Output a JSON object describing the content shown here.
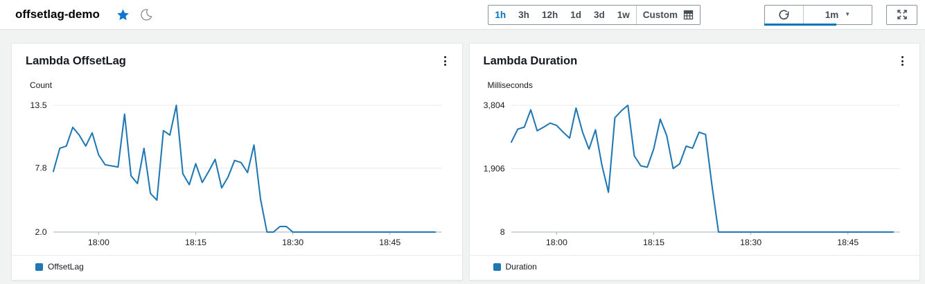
{
  "header": {
    "title": "offsetlag-demo"
  },
  "glyphs": {
    "caret_down": "▼"
  },
  "icons": {
    "favorite": "star",
    "theme_toggle": "moon",
    "custom_range_picker": "calendar-grid",
    "refresh": "circular-arrow",
    "interval_caret": "caret-down",
    "fullscreen": "expand-arrows",
    "widget_menu": "kebab-vertical"
  },
  "toolbar": {
    "time_ranges": [
      "1h",
      "3h",
      "12h",
      "1d",
      "3d",
      "1w"
    ],
    "selected_range": "1h",
    "custom_label": "Custom",
    "refresh_interval": "1m"
  },
  "chart_data": [
    {
      "type": "line",
      "title": "Lambda OffsetLag",
      "ylabel": "Count",
      "grid": true,
      "legend_position": "bottom",
      "x_start": "17:53",
      "x_end": "18:52",
      "x_interval_minutes": 1,
      "x_ticks": [
        {
          "index": 7,
          "label": "18:00"
        },
        {
          "index": 22,
          "label": "18:15"
        },
        {
          "index": 37,
          "label": "18:30"
        },
        {
          "index": 52,
          "label": "18:45"
        }
      ],
      "y_ticks": [
        {
          "value": 13.5,
          "label": "13.5"
        },
        {
          "value": 7.8,
          "label": "7.8"
        },
        {
          "value": 2.0,
          "label": "2.0"
        }
      ],
      "ylim": [
        2.0,
        14.8
      ],
      "series": [
        {
          "name": "OffsetLag",
          "color": "#1f77b4",
          "values": [
            7.5,
            9.6,
            9.8,
            11.5,
            10.8,
            9.8,
            11.0,
            9.0,
            8.1,
            8.0,
            7.9,
            12.7,
            7.1,
            6.4,
            9.6,
            5.5,
            4.9,
            11.2,
            10.8,
            13.5,
            7.3,
            6.3,
            8.2,
            6.5,
            7.5,
            8.6,
            6.0,
            7.0,
            8.5,
            8.3,
            7.4,
            9.9,
            5.0,
            2.0,
            2.0,
            2.5,
            2.5,
            2.0,
            2.0,
            2.0,
            2.0,
            2.0,
            2.0,
            2.0,
            2.0,
            2.0,
            2.0,
            2.0,
            2.0,
            2.0,
            2.0,
            2.0,
            2.0,
            2.0,
            2.0,
            2.0,
            2.0,
            2.0,
            2.0,
            2.0
          ]
        }
      ]
    },
    {
      "type": "line",
      "title": "Lambda Duration",
      "ylabel": "Milliseconds",
      "grid": true,
      "legend_position": "bottom",
      "x_start": "17:53",
      "x_end": "18:52",
      "x_interval_minutes": 1,
      "x_ticks": [
        {
          "index": 7,
          "label": "18:00"
        },
        {
          "index": 22,
          "label": "18:15"
        },
        {
          "index": 37,
          "label": "18:30"
        },
        {
          "index": 52,
          "label": "18:45"
        }
      ],
      "y_ticks": [
        {
          "value": 3804,
          "label": "3,804"
        },
        {
          "value": 1906,
          "label": "1,906"
        },
        {
          "value": 8,
          "label": "8"
        }
      ],
      "ylim": [
        8,
        4220
      ],
      "series": [
        {
          "name": "Duration",
          "color": "#1f77b4",
          "values": [
            2700,
            3090,
            3150,
            3670,
            3040,
            3150,
            3270,
            3200,
            3000,
            2820,
            3720,
            3000,
            2490,
            3070,
            2000,
            1200,
            3430,
            3640,
            3804,
            2290,
            1990,
            1950,
            2500,
            3390,
            2900,
            1910,
            2050,
            2580,
            2520,
            3000,
            2930,
            1400,
            8,
            8,
            8,
            8,
            8,
            8,
            8,
            8,
            8,
            8,
            8,
            8,
            8,
            8,
            8,
            8,
            8,
            8,
            8,
            8,
            8,
            8,
            8,
            8,
            8,
            8,
            8,
            8
          ]
        }
      ]
    }
  ]
}
